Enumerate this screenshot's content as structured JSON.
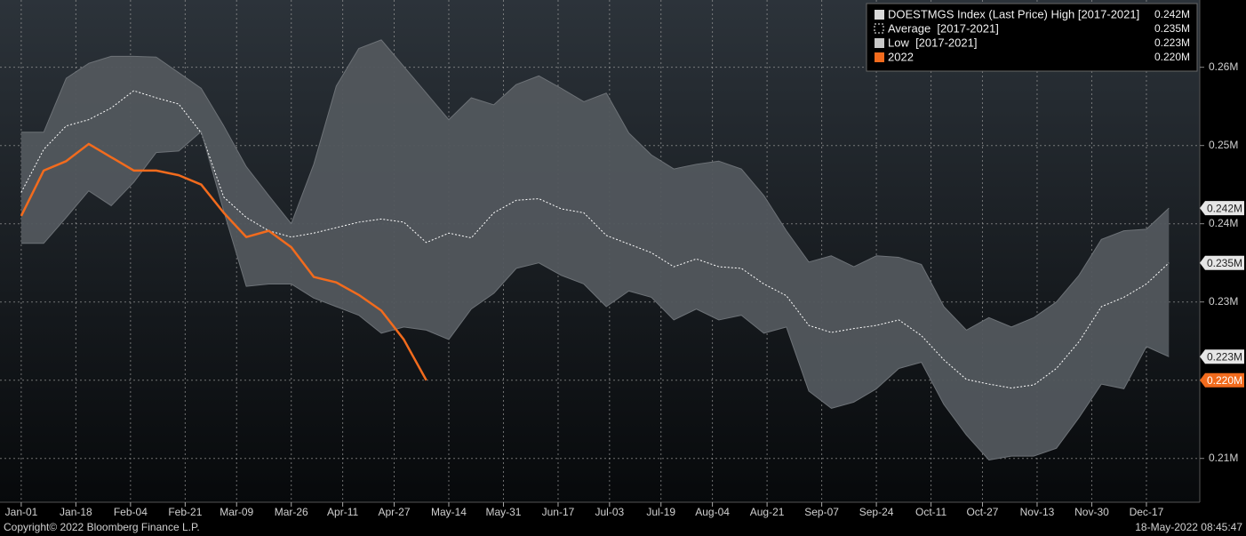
{
  "chart_data": {
    "type": "line",
    "x": [
      0,
      7,
      14,
      21,
      28,
      35,
      42,
      49,
      56,
      63,
      70,
      77,
      84,
      91,
      98,
      105,
      112,
      119,
      126,
      133,
      140,
      147,
      154,
      161,
      168,
      175,
      182,
      189,
      196,
      203,
      210,
      217,
      224,
      231,
      238,
      245,
      252,
      259,
      266,
      273,
      280,
      287,
      294,
      301,
      308,
      315,
      322,
      329,
      336,
      343,
      350,
      357
    ],
    "series": [
      {
        "name": "DOESTMGS Index (Last Price) High [2017-2021]",
        "role": "high",
        "color": "#d9d9d9",
        "legend_value": "0.242M",
        "values": [
          0.2517,
          0.2517,
          0.2586,
          0.2605,
          0.2614,
          0.2614,
          0.2613,
          0.2593,
          0.2573,
          0.2525,
          0.2473,
          0.2436,
          0.24,
          0.2476,
          0.2576,
          0.2624,
          0.2635,
          0.2601,
          0.2567,
          0.2533,
          0.2561,
          0.2552,
          0.2578,
          0.2589,
          0.2573,
          0.2556,
          0.2567,
          0.2516,
          0.2488,
          0.247,
          0.2476,
          0.248,
          0.247,
          0.2436,
          0.2391,
          0.2351,
          0.2359,
          0.2345,
          0.2359,
          0.2357,
          0.2348,
          0.2294,
          0.2264,
          0.228,
          0.2268,
          0.228,
          0.23,
          0.2334,
          0.238,
          0.2391,
          0.2393,
          0.242
        ]
      },
      {
        "name": "Average  [2017-2021]",
        "role": "average",
        "color": "#ffffff",
        "legend_value": "0.235M",
        "values": [
          0.244,
          0.2495,
          0.2525,
          0.2533,
          0.2548,
          0.257,
          0.2561,
          0.2553,
          0.2516,
          0.2434,
          0.2408,
          0.2391,
          0.2383,
          0.2388,
          0.2395,
          0.2402,
          0.2406,
          0.2402,
          0.2376,
          0.2388,
          0.2382,
          0.2414,
          0.243,
          0.2432,
          0.2419,
          0.2414,
          0.2385,
          0.2374,
          0.2363,
          0.2345,
          0.2355,
          0.2345,
          0.2343,
          0.2323,
          0.2308,
          0.227,
          0.2261,
          0.2266,
          0.227,
          0.2277,
          0.2257,
          0.2226,
          0.2201,
          0.2195,
          0.219,
          0.2194,
          0.2215,
          0.2249,
          0.2294,
          0.2306,
          0.2323,
          0.235
        ]
      },
      {
        "name": "Low  [2017-2021]",
        "role": "low",
        "color": "#c8c8c8",
        "legend_value": "0.223M",
        "values": [
          0.2375,
          0.2375,
          0.2408,
          0.2442,
          0.2423,
          0.2453,
          0.2491,
          0.2493,
          0.2518,
          0.2416,
          0.232,
          0.2323,
          0.2323,
          0.2305,
          0.2294,
          0.2283,
          0.226,
          0.2268,
          0.2264,
          0.2252,
          0.2291,
          0.2311,
          0.2343,
          0.235,
          0.2334,
          0.2323,
          0.2294,
          0.2314,
          0.2306,
          0.2277,
          0.2291,
          0.2277,
          0.2283,
          0.226,
          0.2268,
          0.2186,
          0.2164,
          0.2172,
          0.2189,
          0.2215,
          0.2223,
          0.2169,
          0.213,
          0.2098,
          0.2103,
          0.2103,
          0.2113,
          0.2152,
          0.2195,
          0.2189,
          0.2243,
          0.223
        ]
      },
      {
        "name": "2022",
        "role": "current",
        "color": "#f26b1d",
        "legend_value": "0.220M",
        "values": [
          0.241,
          0.2468,
          0.248,
          0.2502,
          0.2485,
          0.2468,
          0.2468,
          0.2462,
          0.245,
          0.2414,
          0.2383,
          0.2391,
          0.237,
          0.2332,
          0.2325,
          0.2309,
          0.2289,
          0.2252,
          0.22,
          null,
          null,
          null,
          null,
          null,
          null,
          null,
          null,
          null,
          null,
          null,
          null,
          null,
          null,
          null,
          null,
          null,
          null,
          null,
          null,
          null,
          null,
          null,
          null,
          null,
          null,
          null,
          null,
          null,
          null,
          null,
          null,
          null
        ]
      }
    ],
    "band_color": "#52575d",
    "xlim": [
      -6.6,
      366.6
    ],
    "xticks": [
      {
        "value": 0,
        "label": "Jan-01"
      },
      {
        "value": 17,
        "label": "Jan-18"
      },
      {
        "value": 34,
        "label": "Feb-04"
      },
      {
        "value": 51,
        "label": "Feb-21"
      },
      {
        "value": 67,
        "label": "Mar-09"
      },
      {
        "value": 84,
        "label": "Mar-26"
      },
      {
        "value": 100,
        "label": "Apr-11"
      },
      {
        "value": 116,
        "label": "Apr-27"
      },
      {
        "value": 133,
        "label": "May-14"
      },
      {
        "value": 150,
        "label": "May-31"
      },
      {
        "value": 167,
        "label": "Jun-17"
      },
      {
        "value": 183,
        "label": "Jul-03"
      },
      {
        "value": 199,
        "label": "Jul-19"
      },
      {
        "value": 215,
        "label": "Aug-04"
      },
      {
        "value": 232,
        "label": "Aug-21"
      },
      {
        "value": 249,
        "label": "Sep-07"
      },
      {
        "value": 266,
        "label": "Sep-24"
      },
      {
        "value": 283,
        "label": "Oct-11"
      },
      {
        "value": 299,
        "label": "Oct-27"
      },
      {
        "value": 316,
        "label": "Nov-13"
      },
      {
        "value": 333,
        "label": "Nov-30"
      },
      {
        "value": 350,
        "label": "Dec-17"
      }
    ],
    "ylim": [
      0.2044,
      0.2686
    ],
    "yticks": [
      {
        "value": 0.21,
        "label": "0.21M"
      },
      {
        "value": 0.22,
        "label": ""
      },
      {
        "value": 0.23,
        "label": "0.23M"
      },
      {
        "value": 0.24,
        "label": "0.24M"
      },
      {
        "value": 0.25,
        "label": "0.25M"
      },
      {
        "value": 0.26,
        "label": "0.26M"
      }
    ],
    "grid": true,
    "legend": "top-right",
    "footer_left": "Copyright© 2022 Bloomberg Finance L.P.",
    "footer_right": "18-May-2022 08:45:47"
  }
}
